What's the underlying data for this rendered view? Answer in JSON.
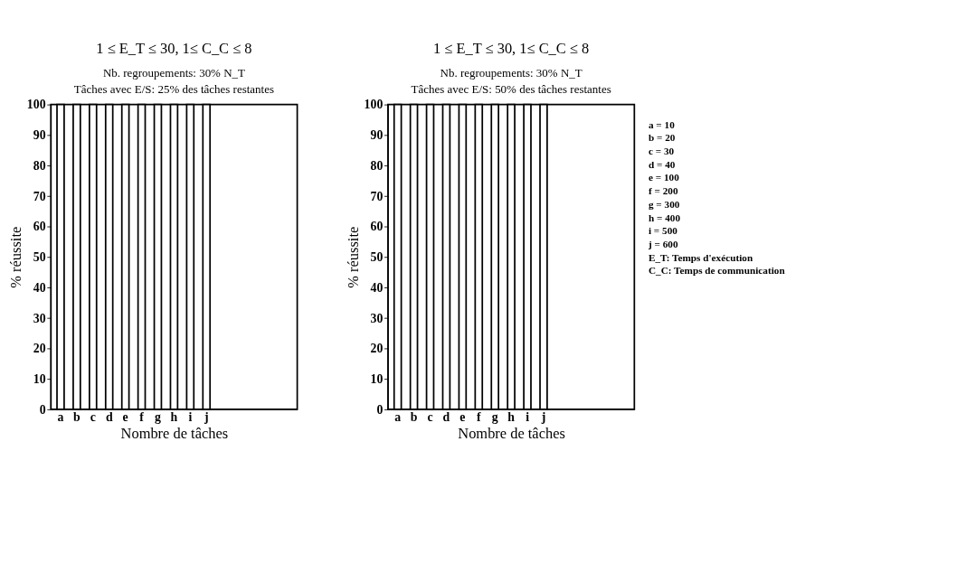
{
  "chart_data": [
    {
      "type": "bar",
      "title": "1 ≤ E_T ≤ 30, 1≤ C_C ≤ 8",
      "subtitle": "Nb. regroupements: 30% N_T\nTâches avec E/S: 25% des tâches restantes",
      "xlabel": "Nombre de tâches",
      "ylabel": "% réussite",
      "categories": [
        "a",
        "b",
        "c",
        "d",
        "e",
        "f",
        "g",
        "h",
        "i",
        "j",
        null,
        null,
        null,
        null,
        null
      ],
      "values": [
        100,
        100,
        100,
        100,
        100,
        100,
        100,
        100,
        100,
        100,
        null,
        null,
        null,
        null,
        null
      ],
      "color": "#ffffff",
      "ylim": [
        0,
        100
      ],
      "yticks": [
        0,
        10,
        20,
        30,
        40,
        50,
        60,
        70,
        80,
        90,
        100
      ],
      "grid": false
    },
    {
      "type": "bar",
      "title": "1 ≤ E_T ≤ 30, 1≤ C_C ≤ 8",
      "subtitle": "Nb. regroupements: 30% N_T\nTâches avec E/S: 50% des tâches restantes",
      "xlabel": "Nombre de tâches",
      "ylabel": "% réussite",
      "categories": [
        "a",
        "b",
        "c",
        "d",
        "e",
        "f",
        "g",
        "h",
        "i",
        "j",
        null,
        null,
        null,
        null,
        null
      ],
      "values": [
        100,
        100,
        100,
        100,
        100,
        100,
        100,
        100,
        100,
        100,
        null,
        null,
        null,
        null,
        null
      ],
      "color": "#ffffff",
      "ylim": [
        0,
        100
      ],
      "yticks": [
        0,
        10,
        20,
        30,
        40,
        50,
        60,
        70,
        80,
        90,
        100
      ],
      "grid": false,
      "annotations": [
        "a = 10",
        "b = 20",
        "c = 30",
        "d = 40",
        "e = 100",
        "f = 200",
        "g = 300",
        "h = 400",
        "i = 500",
        "j = 600",
        "E_T: Temps d'exécution",
        "C_C: Temps de communication"
      ]
    }
  ]
}
